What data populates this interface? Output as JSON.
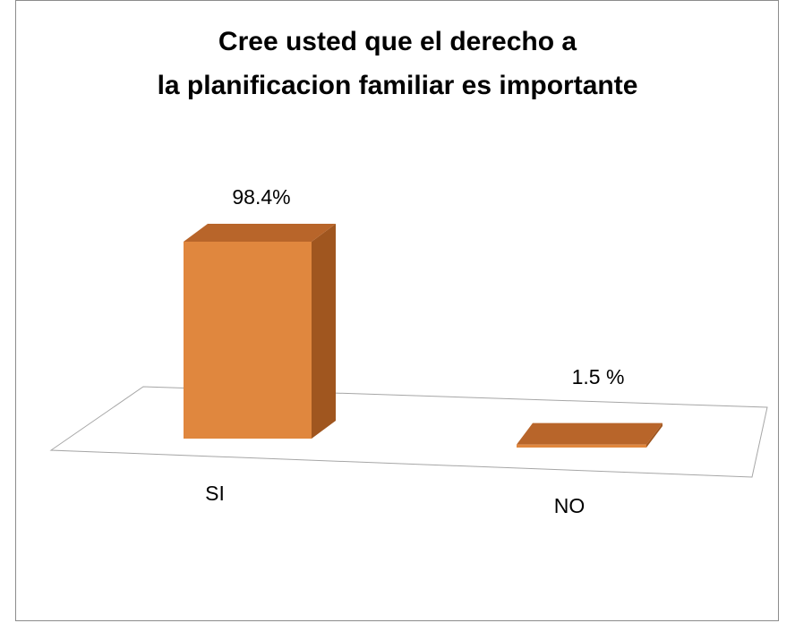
{
  "chart_data": {
    "type": "bar3d",
    "title": "Cree usted que el derecho a la planificacion familiar es importante",
    "categories": [
      "SI",
      "NO"
    ],
    "values": [
      98.4,
      1.5
    ],
    "value_labels": [
      "98.4%",
      "1.5 %"
    ],
    "color": "#e0873e"
  }
}
